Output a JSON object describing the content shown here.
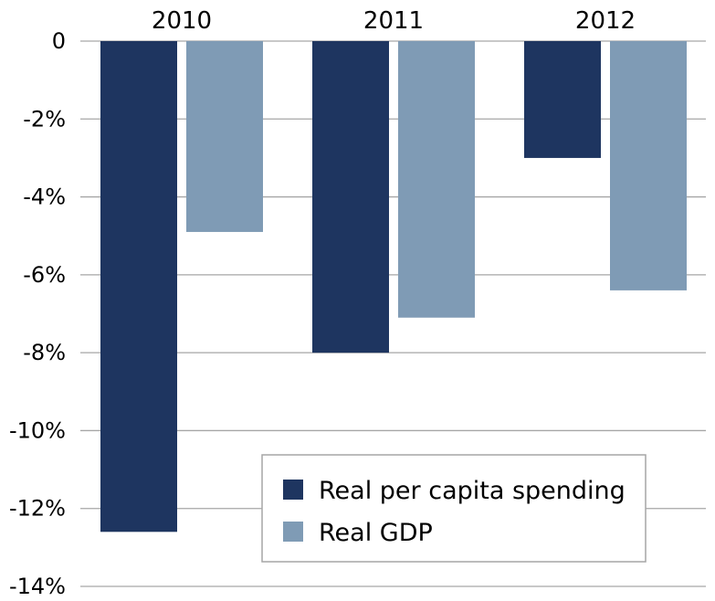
{
  "chart_data": {
    "type": "bar",
    "categories": [
      "2010",
      "2011",
      "2012"
    ],
    "series": [
      {
        "name": "Real per capita spending",
        "values": [
          -12.6,
          -8.0,
          -3.0
        ],
        "color": "#1e3560"
      },
      {
        "name": "Real GDP",
        "values": [
          -4.9,
          -7.1,
          -6.4
        ],
        "color": "#7f9bb5"
      }
    ],
    "ylim": [
      -14,
      0
    ],
    "yticks": [
      {
        "value": 0,
        "label": "0"
      },
      {
        "value": -2,
        "label": "-2%"
      },
      {
        "value": -4,
        "label": "-4%"
      },
      {
        "value": -6,
        "label": "-6%"
      },
      {
        "value": -8,
        "label": "-8%"
      },
      {
        "value": -10,
        "label": "-10%"
      },
      {
        "value": -12,
        "label": "-12%"
      },
      {
        "value": -14,
        "label": "-14%"
      }
    ],
    "category_axis_position": "top",
    "grid": true,
    "gridline_color": "#a6a6a6",
    "legend": "bottom-right",
    "title": "",
    "xlabel": "",
    "ylabel": ""
  }
}
